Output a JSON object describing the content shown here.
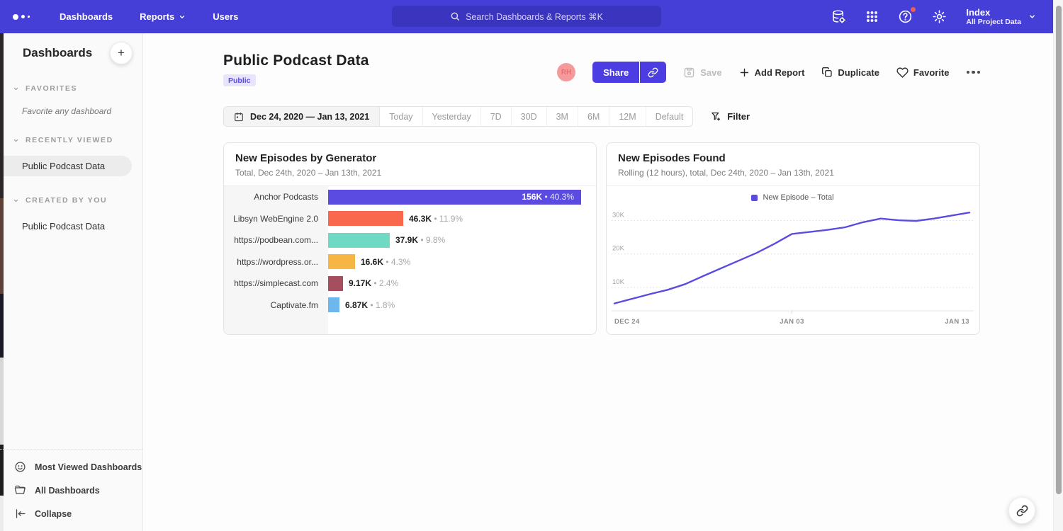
{
  "nav": {
    "menu": [
      "Dashboards",
      "Reports",
      "Users"
    ],
    "search_placeholder": "Search Dashboards & Reports ⌘K",
    "workspace": {
      "name": "Index",
      "subtitle": "All Project Data"
    }
  },
  "sidebar": {
    "title": "Dashboards",
    "sections": [
      {
        "label": "FAVORITES",
        "empty_text": "Favorite any dashboard"
      },
      {
        "label": "RECENTLY VIEWED",
        "item": "Public Podcast Data"
      },
      {
        "label": "CREATED BY YOU",
        "item": "Public Podcast Data"
      }
    ],
    "footer": [
      {
        "icon": "smiley-icon",
        "label": "Most Viewed Dashboards"
      },
      {
        "icon": "folder-icon",
        "label": "All Dashboards"
      },
      {
        "icon": "collapse-icon",
        "label": "Collapse"
      }
    ]
  },
  "header": {
    "title": "Public Podcast Data",
    "badge": "Public",
    "avatar_initials": "RH",
    "share_label": "Share",
    "save_label": "Save",
    "add_report_label": "Add Report",
    "duplicate_label": "Duplicate",
    "favorite_label": "Favorite"
  },
  "toolbar": {
    "date_range": "Dec 24, 2020 — Jan 13, 2021",
    "presets": [
      "Today",
      "Yesterday",
      "7D",
      "30D",
      "3M",
      "6M",
      "12M",
      "Default"
    ],
    "filter_label": "Filter"
  },
  "chart_data": [
    {
      "type": "bar",
      "orientation": "horizontal",
      "title": "New Episodes by Generator",
      "subtitle": "Total, Dec 24th, 2020 – Jan 13th, 2021",
      "categories": [
        "Anchor Podcasts",
        "Libsyn WebEngine 2.0",
        "https://podbean.com...",
        "https://wordpress.or...",
        "https://simplecast.com",
        "Captivate.fm"
      ],
      "values": [
        156000,
        46300,
        37900,
        16600,
        9170,
        6870
      ],
      "value_labels": [
        "156K",
        "46.3K",
        "37.9K",
        "16.6K",
        "9.17K",
        "6.87K"
      ],
      "pct_labels": [
        "40.3%",
        "11.9%",
        "9.8%",
        "4.3%",
        "2.4%",
        "1.8%"
      ],
      "colors": [
        "#5b4be0",
        "#f9684c",
        "#70d9c3",
        "#f6b643",
        "#a54e60",
        "#6db7ee"
      ],
      "xlim": [
        0,
        156000
      ],
      "label_inside_first": true
    },
    {
      "type": "line",
      "title": "New Episodes Found",
      "subtitle": "Rolling (12 hours), total, Dec 24th, 2020 – Jan 13th, 2021",
      "legend": [
        {
          "label": "New Episode – Total",
          "color": "#5b4be0"
        }
      ],
      "x_tick_labels": [
        "DEC 24",
        "JAN 03",
        "JAN 13"
      ],
      "y_ticks": [
        10000,
        20000,
        30000
      ],
      "y_tick_labels": [
        "10K",
        "20K",
        "30K"
      ],
      "ylim": [
        3000,
        33500
      ],
      "values": [
        5200,
        6600,
        8000,
        9300,
        11000,
        13400,
        15700,
        18000,
        20300,
        23000,
        26000,
        26600,
        27200,
        28000,
        29500,
        30600,
        30100,
        29900,
        30600,
        31500,
        32400
      ],
      "grid": "dotted-horizontal",
      "legend_position": "top-center"
    }
  ]
}
